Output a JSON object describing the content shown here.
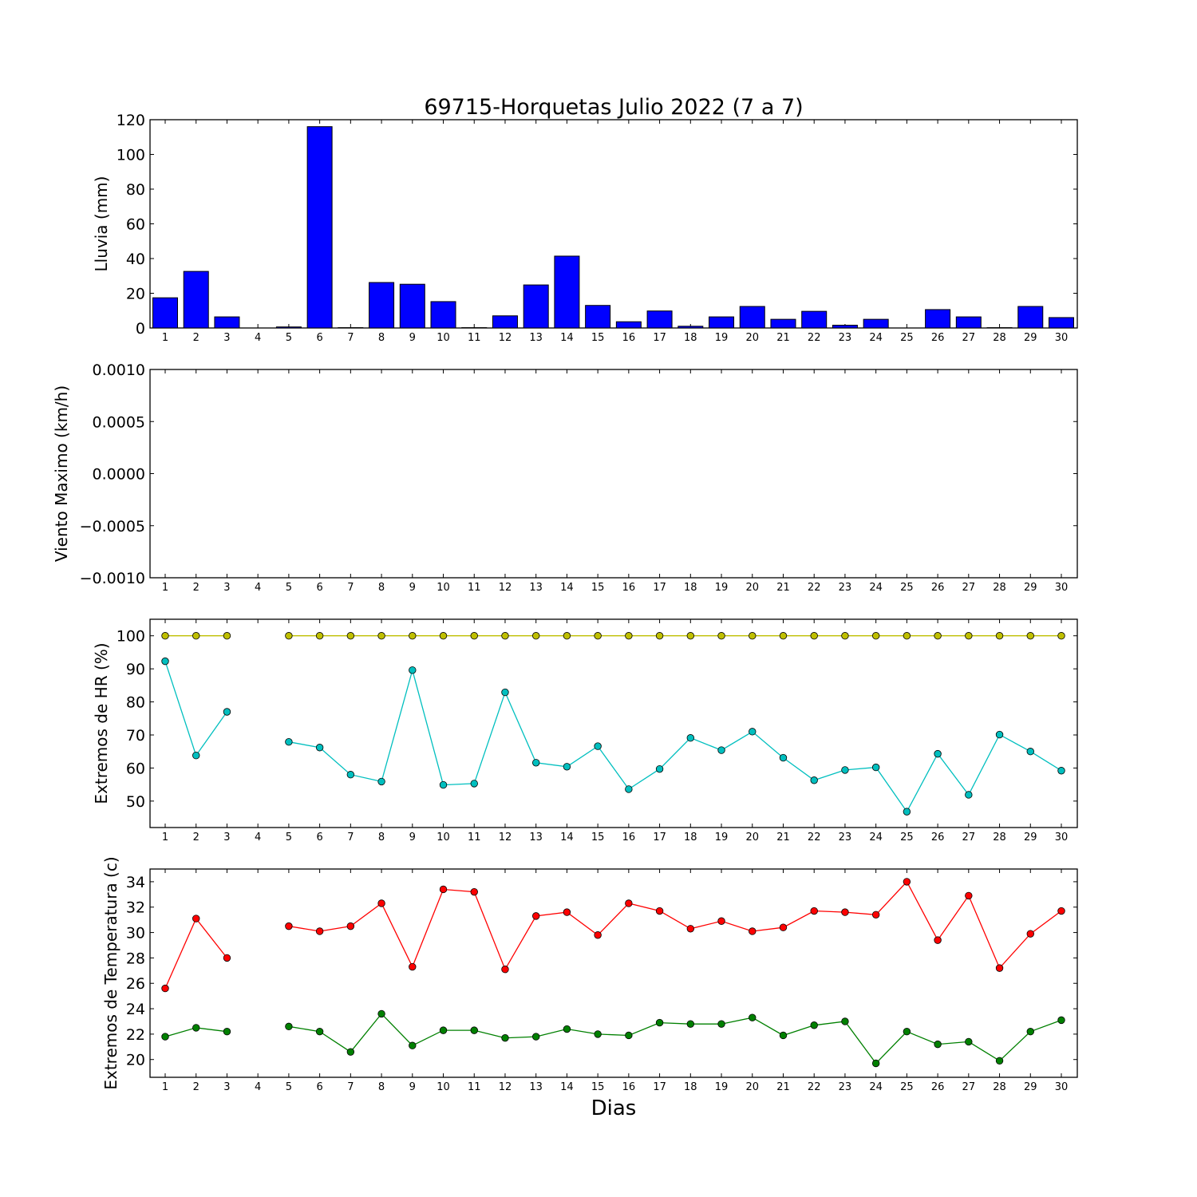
{
  "figure_title": "69715-Horquetas Julio 2022  (7 a 7)",
  "xlabel": "Dias",
  "chart_data": [
    {
      "type": "bar",
      "ylabel": "Lluvia (mm)",
      "ylim": [
        0,
        120
      ],
      "yticks": [
        0,
        20,
        40,
        60,
        80,
        100,
        120
      ],
      "ytick_labels": [
        "0",
        "20",
        "40",
        "60",
        "80",
        "100",
        "120"
      ],
      "categories": [
        "1",
        "2",
        "3",
        "4",
        "5",
        "6",
        "7",
        "8",
        "9",
        "10",
        "11",
        "12",
        "13",
        "14",
        "15",
        "16",
        "17",
        "18",
        "19",
        "20",
        "21",
        "22",
        "23",
        "24",
        "25",
        "26",
        "27",
        "28",
        "29",
        "30"
      ],
      "series": [
        {
          "color": "#0000ff",
          "values": [
            17.4,
            32.6,
            6.4,
            0,
            0.6,
            116.0,
            0.2,
            26.2,
            25.2,
            15.2,
            0.2,
            7.0,
            24.8,
            41.4,
            13.0,
            3.6,
            9.8,
            1.0,
            6.4,
            12.4,
            5.0,
            9.6,
            1.6,
            5.0,
            0,
            10.6,
            6.4,
            0.2,
            12.4,
            6.0
          ]
        }
      ]
    },
    {
      "type": "line",
      "ylabel": "Viento Maximo (km/h)",
      "ylim": [
        -0.001,
        0.001
      ],
      "yticks": [
        -0.001,
        -0.0005,
        0,
        0.0005,
        0.001
      ],
      "ytick_labels": [
        "−0.0010",
        "−0.0005",
        "0.0000",
        "0.0005",
        "0.0010"
      ],
      "categories": [
        "1",
        "2",
        "3",
        "4",
        "5",
        "6",
        "7",
        "8",
        "9",
        "10",
        "11",
        "12",
        "13",
        "14",
        "15",
        "16",
        "17",
        "18",
        "19",
        "20",
        "21",
        "22",
        "23",
        "24",
        "25",
        "26",
        "27",
        "28",
        "29",
        "30"
      ],
      "series": []
    },
    {
      "type": "line",
      "ylabel": "Extremos de HR (%)",
      "ylim": [
        42,
        105
      ],
      "yticks": [
        50,
        60,
        70,
        80,
        90,
        100
      ],
      "ytick_labels": [
        "50",
        "60",
        "70",
        "80",
        "90",
        "100"
      ],
      "categories": [
        "1",
        "2",
        "3",
        "4",
        "5",
        "6",
        "7",
        "8",
        "9",
        "10",
        "11",
        "12",
        "13",
        "14",
        "15",
        "16",
        "17",
        "18",
        "19",
        "20",
        "21",
        "22",
        "23",
        "24",
        "25",
        "26",
        "27",
        "28",
        "29",
        "30"
      ],
      "series": [
        {
          "color": "#bfbf00",
          "values": [
            100,
            100,
            100,
            null,
            100,
            100,
            100,
            100,
            100,
            100,
            100,
            100,
            100,
            100,
            100,
            100,
            100,
            100,
            100,
            100,
            100,
            100,
            100,
            100,
            100,
            100,
            100,
            100,
            100,
            100
          ]
        },
        {
          "color": "#00bfbf",
          "values": [
            92.3,
            63.8,
            77.0,
            null,
            67.9,
            66.2,
            58.0,
            55.9,
            89.6,
            54.9,
            55.3,
            82.9,
            61.6,
            60.4,
            66.6,
            53.6,
            59.7,
            69.1,
            65.4,
            71.0,
            63.1,
            56.3,
            59.4,
            60.2,
            46.8,
            64.3,
            51.9,
            70.1,
            65.0,
            59.2
          ]
        }
      ]
    },
    {
      "type": "line",
      "ylabel": "Extremos de Temperatura (c)",
      "ylim": [
        18.6,
        35.0
      ],
      "yticks": [
        20,
        22,
        24,
        26,
        28,
        30,
        32,
        34
      ],
      "ytick_labels": [
        "20",
        "22",
        "24",
        "26",
        "28",
        "30",
        "32",
        "34"
      ],
      "categories": [
        "1",
        "2",
        "3",
        "4",
        "5",
        "6",
        "7",
        "8",
        "9",
        "10",
        "11",
        "12",
        "13",
        "14",
        "15",
        "16",
        "17",
        "18",
        "19",
        "20",
        "21",
        "22",
        "23",
        "24",
        "25",
        "26",
        "27",
        "28",
        "29",
        "30"
      ],
      "series": [
        {
          "color": "#ff0000",
          "values": [
            25.6,
            31.1,
            28.0,
            null,
            30.5,
            30.1,
            30.5,
            32.3,
            27.3,
            33.4,
            33.2,
            27.1,
            31.3,
            31.6,
            29.8,
            32.3,
            31.7,
            30.3,
            30.9,
            30.1,
            30.4,
            31.7,
            31.6,
            31.4,
            34.0,
            29.4,
            32.9,
            27.2,
            29.9,
            31.7
          ]
        },
        {
          "color": "#008000",
          "values": [
            21.8,
            22.5,
            22.2,
            null,
            22.6,
            22.2,
            20.6,
            23.6,
            21.1,
            22.3,
            22.3,
            21.7,
            21.8,
            22.4,
            22.0,
            21.9,
            22.9,
            22.8,
            22.8,
            23.3,
            21.9,
            22.7,
            23.0,
            19.7,
            22.2,
            21.2,
            21.4,
            19.9,
            22.2,
            23.1
          ]
        }
      ]
    }
  ]
}
